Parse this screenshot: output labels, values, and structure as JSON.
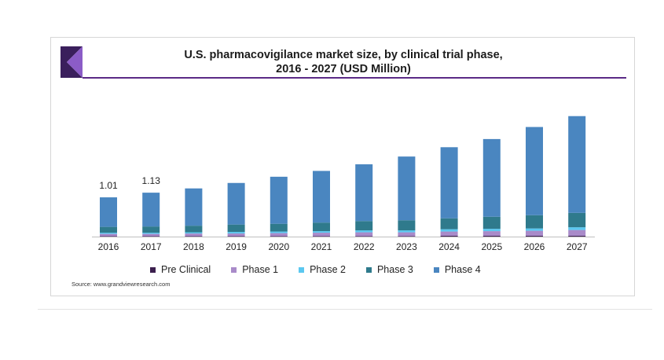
{
  "title_line1": "U.S. pharmacovigilance market size, by clinical trial phase,",
  "title_line2": "2016 - 2027 (USD Million)",
  "source": "Source: www.grandviewresearch.com",
  "colors": {
    "pre_clinical": "#3b1f4e",
    "phase1": "#a98bc9",
    "phase2": "#5bc8f0",
    "phase3": "#2f7a8c",
    "phase4": "#4a86c0",
    "logo_dark": "#3a1f5c",
    "logo_light": "#8b5cc7"
  },
  "chart_data": {
    "type": "bar",
    "stacked": true,
    "title": "U.S. pharmacovigilance market size, by clinical trial phase, 2016 - 2027 (USD Million)",
    "xlabel": "",
    "ylabel": "",
    "ylim": [
      0,
      3.6
    ],
    "grid": false,
    "legend_position": "bottom",
    "categories": [
      "2016",
      "2017",
      "2018",
      "2019",
      "2020",
      "2021",
      "2022",
      "2023",
      "2024",
      "2025",
      "2026",
      "2027"
    ],
    "series": [
      {
        "name": "Pre Clinical",
        "key": "pre_clinical",
        "values": [
          0.01,
          0.01,
          0.01,
          0.01,
          0.01,
          0.01,
          0.01,
          0.01,
          0.02,
          0.02,
          0.02,
          0.02
        ]
      },
      {
        "name": "Phase 1",
        "key": "phase1",
        "values": [
          0.06,
          0.06,
          0.07,
          0.07,
          0.08,
          0.09,
          0.1,
          0.1,
          0.11,
          0.12,
          0.13,
          0.15
        ]
      },
      {
        "name": "Phase 2",
        "key": "phase2",
        "values": [
          0.03,
          0.03,
          0.03,
          0.04,
          0.04,
          0.04,
          0.05,
          0.05,
          0.06,
          0.06,
          0.06,
          0.07
        ]
      },
      {
        "name": "Phase 3",
        "key": "phase3",
        "values": [
          0.15,
          0.16,
          0.17,
          0.19,
          0.2,
          0.22,
          0.24,
          0.26,
          0.28,
          0.31,
          0.34,
          0.37
        ]
      },
      {
        "name": "Phase 4",
        "key": "phase4",
        "values": [
          0.76,
          0.87,
          0.96,
          1.07,
          1.21,
          1.33,
          1.46,
          1.64,
          1.83,
          2.0,
          2.27,
          2.49
        ]
      }
    ],
    "data_labels": [
      {
        "category": "2016",
        "text": "1.01"
      },
      {
        "category": "2017",
        "text": "1.13"
      }
    ]
  }
}
